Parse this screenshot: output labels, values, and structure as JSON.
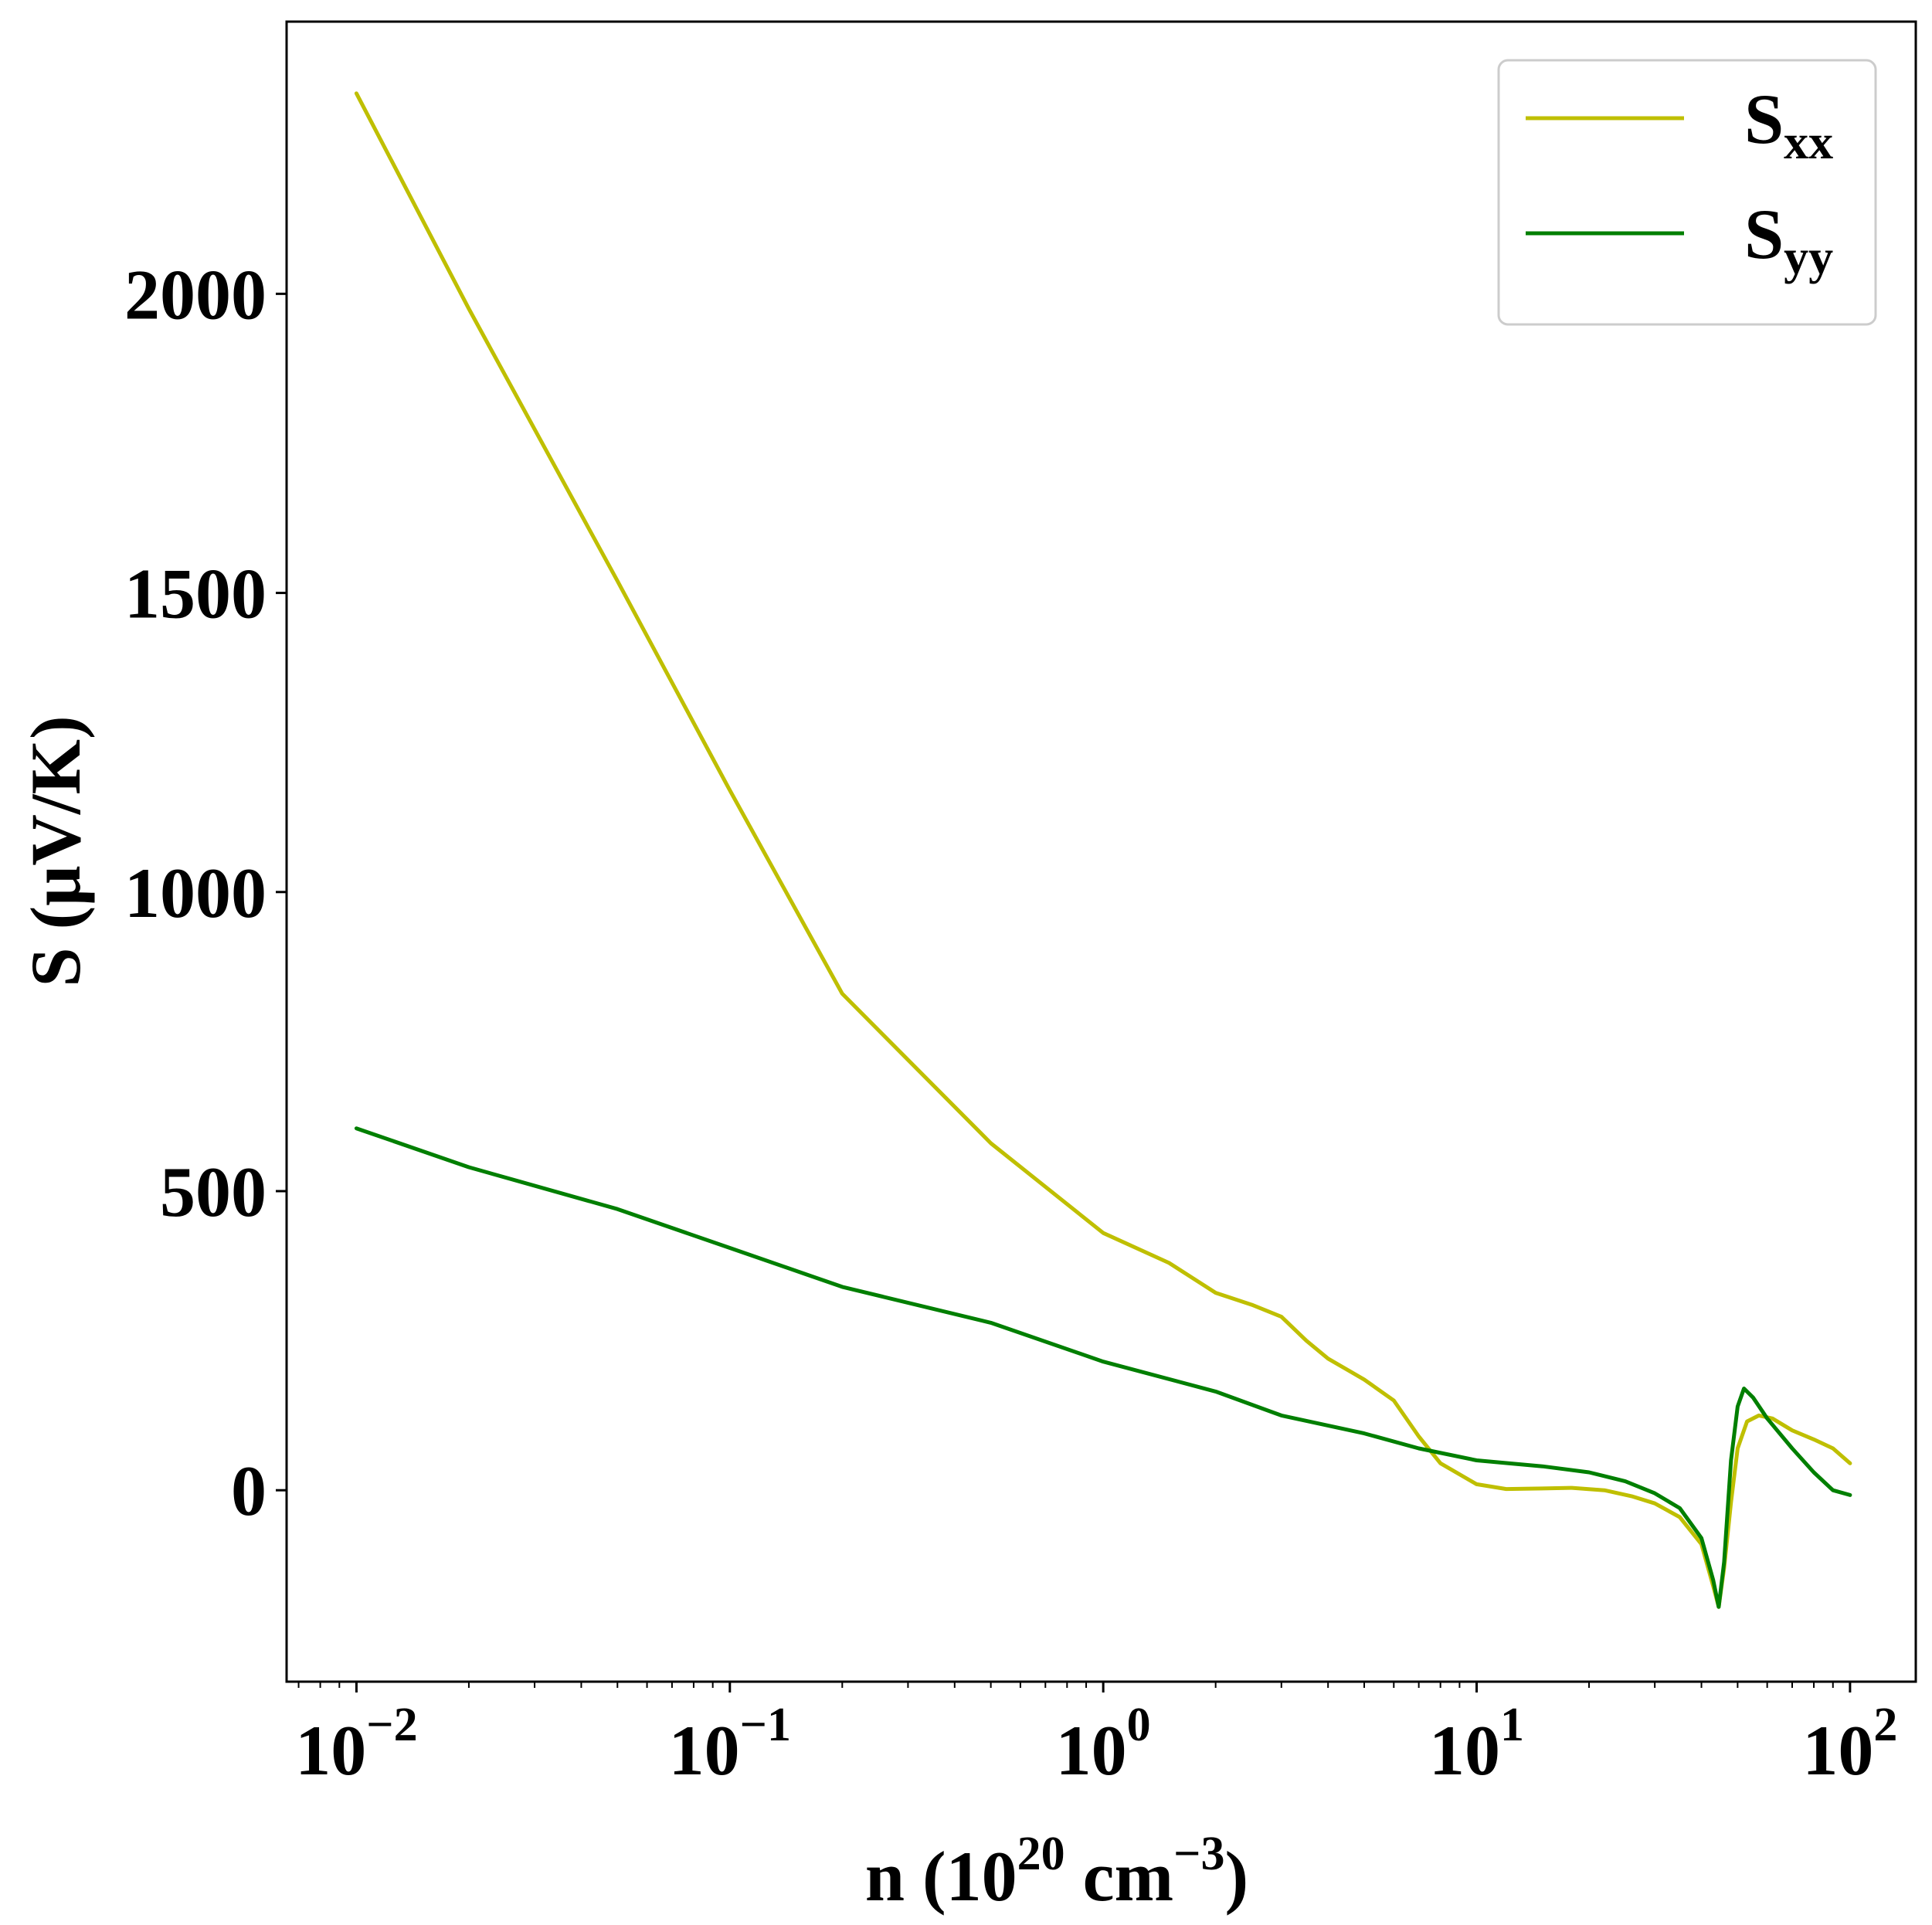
{
  "chart_data": {
    "type": "line",
    "xlabel": {
      "base": "n (10",
      "exp1": "20",
      "mid": " cm",
      "exp2": "−3",
      "end": ")"
    },
    "ylabel": "S (μV/K)",
    "xscale": "log",
    "xlim": [
      0.0065,
      150
    ],
    "ylim": [
      -320,
      2455
    ],
    "x_ticks": [
      {
        "value": 0.01,
        "base": "10",
        "exp": "−2"
      },
      {
        "value": 0.1,
        "base": "10",
        "exp": "−1"
      },
      {
        "value": 1,
        "base": "10",
        "exp": "0"
      },
      {
        "value": 10,
        "base": "10",
        "exp": "1"
      },
      {
        "value": 100,
        "base": "10",
        "exp": "2"
      }
    ],
    "y_ticks": [
      0,
      500,
      1000,
      1500,
      2000
    ],
    "y_tick_labels": [
      "0",
      "500",
      "1000",
      "1500",
      "2000"
    ],
    "grid": false,
    "legend": {
      "placement": "top-right"
    },
    "series": [
      {
        "name": "S",
        "subscript": "xx",
        "color": "#bfbf00",
        "points": [
          [
            0.01,
            2335
          ],
          [
            0.02,
            1975
          ],
          [
            0.05,
            1520
          ],
          [
            0.1,
            1170
          ],
          [
            0.2,
            830
          ],
          [
            0.5,
            580
          ],
          [
            1,
            430
          ],
          [
            1.5,
            380
          ],
          [
            2,
            330
          ],
          [
            2.5,
            310
          ],
          [
            3,
            290
          ],
          [
            3.5,
            250
          ],
          [
            4,
            220
          ],
          [
            5,
            185
          ],
          [
            6,
            150
          ],
          [
            7,
            90
          ],
          [
            8,
            45
          ],
          [
            10,
            10
          ],
          [
            12,
            2
          ],
          [
            15,
            3
          ],
          [
            18,
            4
          ],
          [
            22,
            0
          ],
          [
            26,
            -10
          ],
          [
            30,
            -22
          ],
          [
            35,
            -45
          ],
          [
            40,
            -90
          ],
          [
            43,
            -160
          ],
          [
            44.5,
            -195
          ],
          [
            46,
            -130
          ],
          [
            48,
            -20
          ],
          [
            50,
            70
          ],
          [
            53,
            115
          ],
          [
            57,
            125
          ],
          [
            62,
            120
          ],
          [
            70,
            100
          ],
          [
            80,
            85
          ],
          [
            90,
            70
          ],
          [
            100,
            45
          ]
        ]
      },
      {
        "name": "S",
        "subscript": "yy",
        "color": "#007f00",
        "points": [
          [
            0.01,
            605
          ],
          [
            0.02,
            540
          ],
          [
            0.05,
            470
          ],
          [
            0.1,
            405
          ],
          [
            0.2,
            340
          ],
          [
            0.5,
            280
          ],
          [
            1,
            215
          ],
          [
            2,
            165
          ],
          [
            3,
            125
          ],
          [
            5,
            95
          ],
          [
            7,
            70
          ],
          [
            10,
            50
          ],
          [
            15,
            40
          ],
          [
            20,
            30
          ],
          [
            25,
            15
          ],
          [
            30,
            -5
          ],
          [
            35,
            -30
          ],
          [
            40,
            -80
          ],
          [
            43,
            -150
          ],
          [
            44.5,
            -195
          ],
          [
            46,
            -120
          ],
          [
            48,
            50
          ],
          [
            50,
            140
          ],
          [
            52,
            170
          ],
          [
            55,
            155
          ],
          [
            60,
            120
          ],
          [
            70,
            70
          ],
          [
            80,
            30
          ],
          [
            90,
            0
          ],
          [
            100,
            -8
          ]
        ]
      }
    ]
  }
}
